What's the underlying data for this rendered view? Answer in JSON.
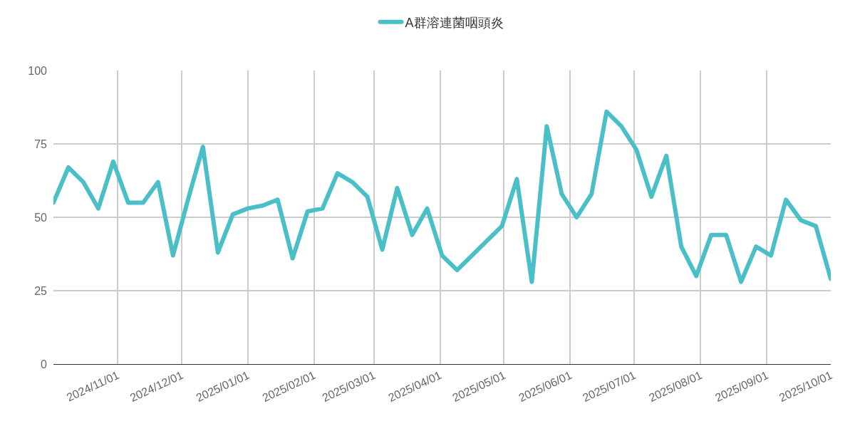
{
  "chart_data": {
    "type": "line",
    "legend": "top",
    "grid": true,
    "marker": "none",
    "line_style": "solid",
    "x": [
      "2024-10-02",
      "2024-10-09",
      "2024-10-16",
      "2024-10-23",
      "2024-10-30",
      "2024-11-06",
      "2024-11-13",
      "2024-11-20",
      "2024-11-27",
      "2024-12-04",
      "2024-12-11",
      "2024-12-18",
      "2024-12-25",
      "2025-01-01",
      "2025-01-08",
      "2025-01-15",
      "2025-01-22",
      "2025-01-29",
      "2025-02-05",
      "2025-02-12",
      "2025-02-19",
      "2025-02-26",
      "2025-03-05",
      "2025-03-12",
      "2025-03-19",
      "2025-03-26",
      "2025-04-02",
      "2025-04-09",
      "2025-04-16",
      "2025-04-23",
      "2025-04-30",
      "2025-05-07",
      "2025-05-14",
      "2025-05-21",
      "2025-05-28",
      "2025-06-04",
      "2025-06-11",
      "2025-06-18",
      "2025-06-25",
      "2025-07-02",
      "2025-07-09",
      "2025-07-16",
      "2025-07-23",
      "2025-07-30",
      "2025-08-06",
      "2025-08-13",
      "2025-08-20",
      "2025-08-27",
      "2025-09-03",
      "2025-09-10",
      "2025-09-17",
      "2025-09-24",
      "2025-10-01"
    ],
    "series": [
      {
        "name": "A群溶連菌咽頭炎",
        "color": "#4bbfc8",
        "values": [
          55,
          67,
          62,
          53,
          69,
          55,
          55,
          62,
          37,
          56,
          74,
          38,
          51,
          53,
          54,
          56,
          36,
          52,
          53,
          65,
          62,
          57,
          39,
          60,
          44,
          53,
          37,
          32,
          37,
          42,
          47,
          63,
          28,
          81,
          58,
          50,
          58,
          86,
          81,
          73,
          57,
          71,
          40,
          30,
          44,
          44,
          28,
          40,
          37,
          56,
          49,
          47,
          29
        ]
      }
    ],
    "xlim": [
      "2024-10-02",
      "2025-10-01"
    ],
    "xticks": [
      {
        "value": "2024-11-01",
        "label": "2024/11/01"
      },
      {
        "value": "2024-12-01",
        "label": "2024/12/01"
      },
      {
        "value": "2025-01-01",
        "label": "2025/01/01"
      },
      {
        "value": "2025-02-01",
        "label": "2025/02/01"
      },
      {
        "value": "2025-03-01",
        "label": "2025/03/01"
      },
      {
        "value": "2025-04-01",
        "label": "2025/04/01"
      },
      {
        "value": "2025-05-01",
        "label": "2025/05/01"
      },
      {
        "value": "2025-06-01",
        "label": "2025/06/01"
      },
      {
        "value": "2025-07-01",
        "label": "2025/07/01"
      },
      {
        "value": "2025-08-01",
        "label": "2025/08/01"
      },
      {
        "value": "2025-09-01",
        "label": "2025/09/01"
      },
      {
        "value": "2025-10-01",
        "label": "2025/10/01"
      }
    ],
    "ylim": [
      0,
      100
    ],
    "yticks": [
      0,
      25,
      50,
      75,
      100
    ]
  }
}
